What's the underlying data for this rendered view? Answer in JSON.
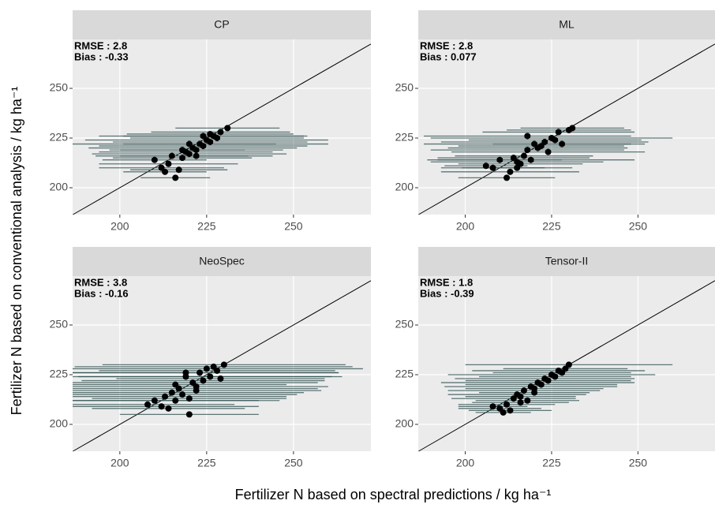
{
  "x_label": "Fertilizer N based on spectral predictions / kg ha⁻¹",
  "y_label": "Fertilizer N based on conventional analysis / kg ha⁻¹",
  "chart_data": [
    {
      "type": "scatter",
      "title": "CP",
      "annotations": [
        "RMSE : 2.8",
        "Bias : -0.33"
      ],
      "x": [
        210,
        212,
        213,
        214,
        215,
        216,
        217,
        218,
        219,
        220,
        221,
        222,
        223,
        224,
        225,
        226,
        227,
        228,
        229,
        231,
        220,
        218,
        222,
        224,
        226
      ],
      "y": [
        214,
        210,
        208,
        212,
        216,
        205,
        209,
        215,
        218,
        217,
        220,
        219,
        222,
        221,
        224,
        223,
        226,
        225,
        228,
        230,
        222,
        219,
        216,
        226,
        227
      ],
      "xerr": [
        15,
        18,
        12,
        20,
        22,
        10,
        14,
        20,
        25,
        28,
        30,
        25,
        22,
        30,
        35,
        28,
        26,
        25,
        20,
        15,
        40,
        18,
        22,
        30,
        24
      ],
      "color": "#000000",
      "errcolor": "#2f4f4f",
      "xlim": [
        186.4,
        272.3
      ],
      "ylim": [
        186.5,
        274.6
      ],
      "xticks": [
        200,
        225,
        250
      ],
      "yticks": [
        200,
        225,
        250
      ],
      "grid": true
    },
    {
      "type": "scatter",
      "title": "ML",
      "annotations": [
        "RMSE : 2.8",
        "Bias : 0.077"
      ],
      "x": [
        206,
        208,
        210,
        212,
        213,
        214,
        215,
        216,
        217,
        218,
        219,
        220,
        221,
        222,
        223,
        224,
        225,
        226,
        227,
        228,
        230,
        231,
        218,
        215
      ],
      "y": [
        211,
        210,
        214,
        205,
        208,
        215,
        213,
        212,
        216,
        219,
        214,
        222,
        220,
        221,
        223,
        218,
        225,
        224,
        228,
        222,
        229,
        230,
        226,
        210
      ],
      "xerr": [
        12,
        15,
        18,
        14,
        20,
        22,
        25,
        18,
        20,
        28,
        30,
        32,
        26,
        24,
        30,
        28,
        35,
        25,
        22,
        20,
        18,
        15,
        30,
        16
      ],
      "color": "#000000",
      "errcolor": "#2f4f4f",
      "xlim": [
        186.4,
        272.3
      ],
      "ylim": [
        186.5,
        274.6
      ],
      "xticks": [
        200,
        225,
        250
      ],
      "yticks": [
        200,
        225,
        250
      ],
      "grid": true
    },
    {
      "type": "scatter",
      "title": "NeoSpec",
      "annotations": [
        "RMSE : 3.8",
        "Bias : -0.16"
      ],
      "x": [
        208,
        210,
        212,
        213,
        214,
        215,
        216,
        217,
        218,
        219,
        220,
        221,
        222,
        223,
        224,
        225,
        226,
        227,
        228,
        229,
        230,
        220,
        216,
        222,
        219
      ],
      "y": [
        210,
        212,
        209,
        214,
        208,
        216,
        212,
        218,
        215,
        224,
        205,
        221,
        219,
        226,
        222,
        228,
        224,
        229,
        227,
        223,
        230,
        213,
        220,
        217,
        226
      ],
      "xerr": [
        25,
        30,
        28,
        35,
        22,
        38,
        30,
        40,
        33,
        42,
        20,
        36,
        38,
        40,
        35,
        45,
        38,
        40,
        34,
        30,
        35,
        28,
        32,
        36,
        44
      ],
      "color": "#000000",
      "errcolor": "#2f4f4f",
      "xlim": [
        186.4,
        272.3
      ],
      "ylim": [
        186.5,
        274.6
      ],
      "xticks": [
        200,
        225,
        250
      ],
      "yticks": [
        200,
        225,
        250
      ],
      "grid": true
    },
    {
      "type": "scatter",
      "title": "Tensor-II",
      "annotations": [
        "RMSE : 1.8",
        "Bias : -0.39"
      ],
      "x": [
        208,
        210,
        211,
        212,
        213,
        214,
        215,
        216,
        217,
        218,
        219,
        220,
        221,
        222,
        223,
        224,
        225,
        226,
        227,
        228,
        229,
        230,
        216,
        220
      ],
      "y": [
        209,
        208,
        206,
        210,
        207,
        213,
        215,
        214,
        217,
        212,
        219,
        218,
        221,
        220,
        223,
        222,
        225,
        224,
        227,
        226,
        228,
        230,
        211,
        216
      ],
      "xerr": [
        10,
        12,
        8,
        14,
        12,
        18,
        20,
        16,
        22,
        15,
        25,
        20,
        28,
        22,
        26,
        24,
        30,
        22,
        25,
        20,
        18,
        30,
        14,
        16
      ],
      "color": "#000000",
      "errcolor": "#2f4f4f",
      "xlim": [
        186.4,
        272.3
      ],
      "ylim": [
        186.5,
        274.6
      ],
      "xticks": [
        200,
        225,
        250
      ],
      "yticks": [
        200,
        225,
        250
      ],
      "grid": true
    }
  ]
}
